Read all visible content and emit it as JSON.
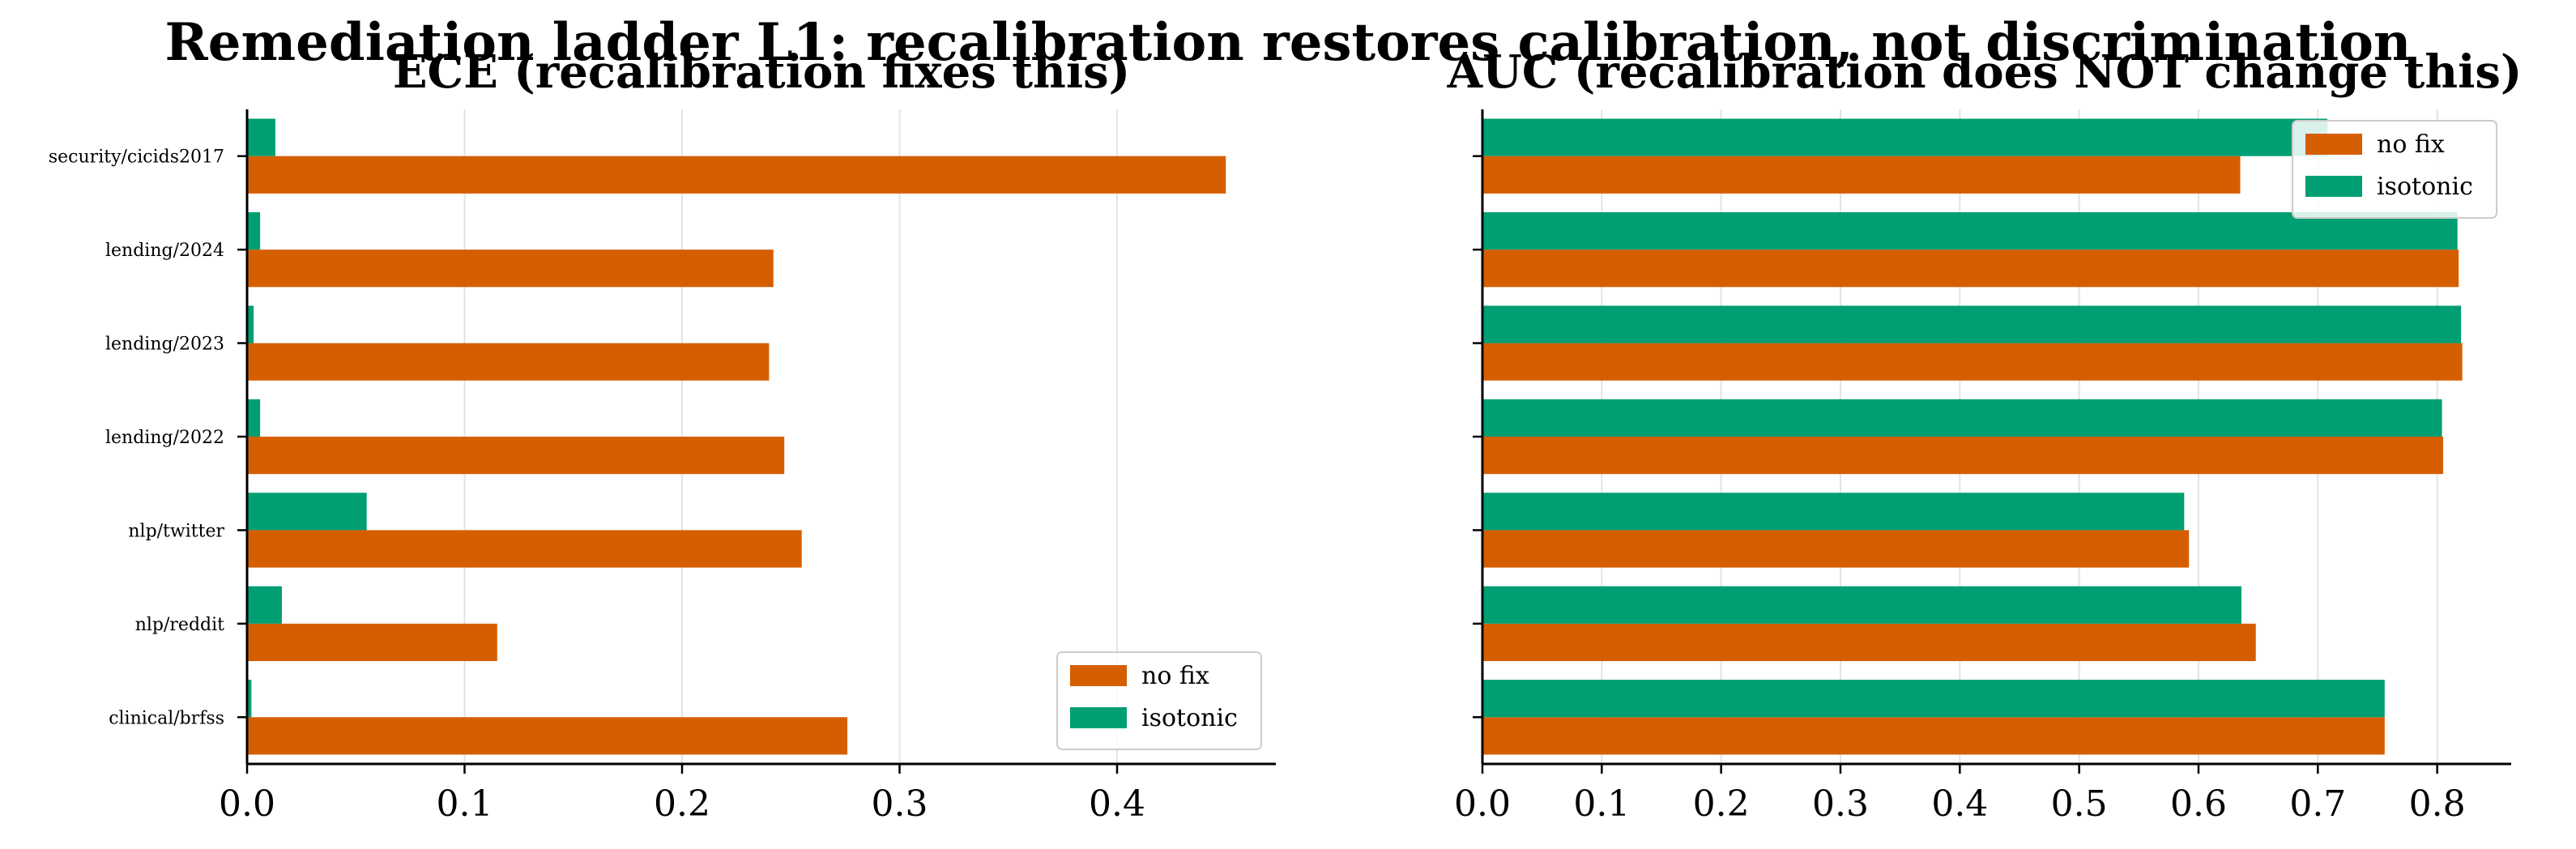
{
  "figure": {
    "title": "Remediation ladder L1: recalibration restores calibration, not discrimination"
  },
  "colors": {
    "no_fix": "#d55e00",
    "isotonic": "#009e73"
  },
  "chart_data": [
    {
      "type": "bar",
      "orientation": "horizontal",
      "title": "ECE (recalibration fixes this)",
      "xlabel": "",
      "ylabel": "",
      "categories": [
        "security/cicids2017",
        "lending/2024",
        "lending/2023",
        "lending/2022",
        "nlp/twitter",
        "nlp/reddit",
        "clinical/brfss"
      ],
      "series": [
        {
          "name": "no fix",
          "color": "#d55e00",
          "values": [
            0.45,
            0.242,
            0.24,
            0.247,
            0.255,
            0.115,
            0.276
          ]
        },
        {
          "name": "isotonic",
          "color": "#009e73",
          "values": [
            0.013,
            0.006,
            0.003,
            0.006,
            0.055,
            0.016,
            0.002
          ]
        }
      ],
      "xlim": [
        0,
        0.473
      ],
      "xticks": [
        "0.0",
        "0.1",
        "0.2",
        "0.3",
        "0.4"
      ],
      "grid": "x",
      "legend": "lower-right"
    },
    {
      "type": "bar",
      "orientation": "horizontal",
      "title": "AUC (recalibration does NOT change this)",
      "xlabel": "",
      "ylabel": "",
      "categories": [
        "security/cicids2017",
        "lending/2024",
        "lending/2023",
        "lending/2022",
        "nlp/twitter",
        "nlp/reddit",
        "clinical/brfss"
      ],
      "series": [
        {
          "name": "no fix",
          "color": "#d55e00",
          "values": [
            0.635,
            0.818,
            0.821,
            0.805,
            0.592,
            0.648,
            0.756
          ]
        },
        {
          "name": "isotonic",
          "color": "#009e73",
          "values": [
            0.708,
            0.817,
            0.82,
            0.804,
            0.588,
            0.636,
            0.756
          ]
        }
      ],
      "xlim": [
        0,
        0.862
      ],
      "xticks": [
        "0.0",
        "0.1",
        "0.2",
        "0.3",
        "0.4",
        "0.5",
        "0.6",
        "0.7",
        "0.8"
      ],
      "grid": "x",
      "legend": "upper-right"
    }
  ]
}
